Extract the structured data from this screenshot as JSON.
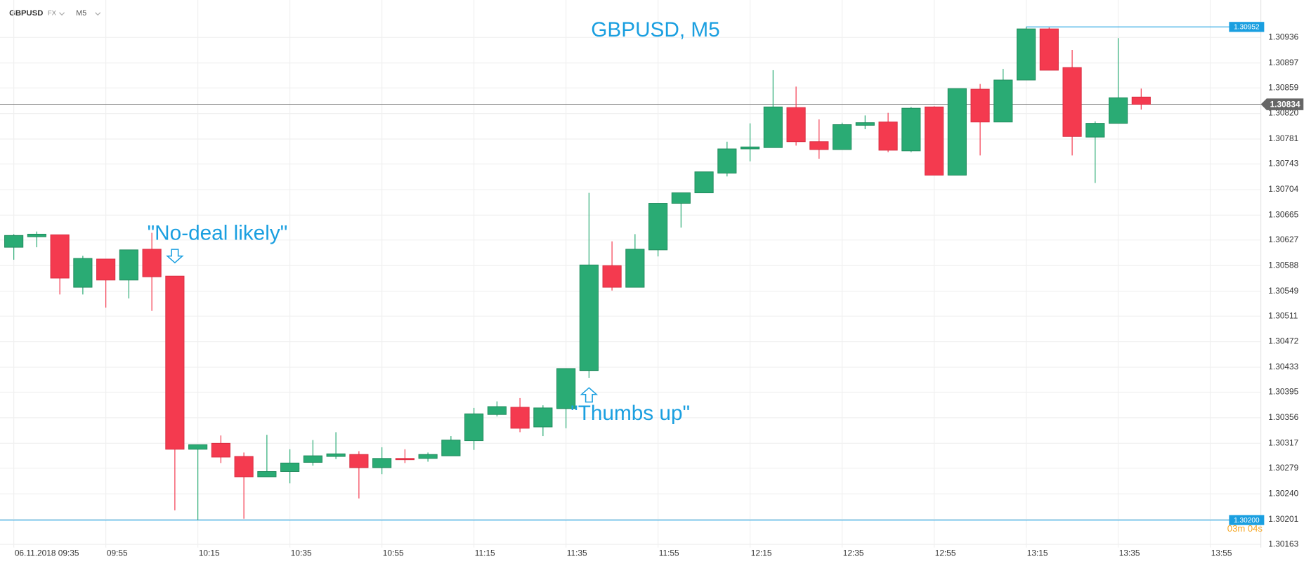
{
  "toolbar": {
    "symbol": "GBPUSD",
    "market": "FX",
    "timeframe": "M5"
  },
  "chart_data": {
    "type": "candlestick",
    "title": "GBPUSD, M5",
    "x": [
      "09:35",
      "09:40",
      "09:45",
      "09:50",
      "09:55",
      "10:00",
      "10:05",
      "10:10",
      "10:15",
      "10:20",
      "10:25",
      "10:30",
      "10:35",
      "10:40",
      "10:45",
      "10:50",
      "10:55",
      "11:00",
      "11:05",
      "11:10",
      "11:15",
      "11:20",
      "11:25",
      "11:30",
      "11:35",
      "11:40",
      "11:45",
      "11:50",
      "11:55",
      "12:00",
      "12:05",
      "12:10",
      "12:15",
      "12:20",
      "12:25",
      "12:30",
      "12:35",
      "12:40",
      "12:45",
      "12:50",
      "12:55",
      "13:00",
      "13:05",
      "13:10",
      "13:15",
      "13:20",
      "13:25",
      "13:30",
      "13:35",
      "13:40"
    ],
    "open": [
      1.30616,
      1.30632,
      1.30635,
      1.30555,
      1.30598,
      1.30566,
      1.30613,
      1.30572,
      1.30308,
      1.30317,
      1.30297,
      1.30266,
      1.30274,
      1.30288,
      1.30297,
      1.303,
      1.3028,
      1.30294,
      1.30294,
      1.30298,
      1.30321,
      1.30361,
      1.30372,
      1.30342,
      1.3037,
      1.30428,
      1.30588,
      1.30555,
      1.30612,
      1.30683,
      1.30699,
      1.30729,
      1.30766,
      1.30768,
      1.30829,
      1.30777,
      1.30765,
      1.30802,
      1.30807,
      1.30763,
      1.3083,
      1.30726,
      1.30857,
      1.30807,
      1.30871,
      1.30949,
      1.3089,
      1.30784,
      1.30805,
      1.30845
    ],
    "high": [
      1.30636,
      1.3064,
      1.30635,
      1.30603,
      1.30598,
      1.30612,
      1.30638,
      1.30572,
      1.30315,
      1.30329,
      1.30303,
      1.3033,
      1.30308,
      1.30322,
      1.30334,
      1.30305,
      1.30311,
      1.30308,
      1.30303,
      1.30328,
      1.30371,
      1.30381,
      1.30386,
      1.30375,
      1.30431,
      1.30699,
      1.30625,
      1.30636,
      1.30683,
      1.30699,
      1.30731,
      1.30777,
      1.30805,
      1.30886,
      1.30861,
      1.30811,
      1.30806,
      1.30817,
      1.30821,
      1.3083,
      1.30831,
      1.30858,
      1.30865,
      1.30888,
      1.30952,
      1.30951,
      1.30917,
      1.30808,
      1.30935,
      1.30858
    ],
    "low": [
      1.30597,
      1.30616,
      1.30544,
      1.30544,
      1.30524,
      1.30538,
      1.30519,
      1.30215,
      1.302,
      1.30287,
      1.30202,
      1.30266,
      1.30256,
      1.30283,
      1.30293,
      1.30233,
      1.3027,
      1.30287,
      1.30289,
      1.30298,
      1.30307,
      1.30358,
      1.30334,
      1.30328,
      1.3034,
      1.30417,
      1.3055,
      1.30555,
      1.30602,
      1.30646,
      1.30699,
      1.30724,
      1.30747,
      1.30768,
      1.30771,
      1.30751,
      1.30765,
      1.30796,
      1.30761,
      1.30761,
      1.30726,
      1.30726,
      1.30756,
      1.30807,
      1.30871,
      1.30886,
      1.30756,
      1.30714,
      1.30805,
      1.30826
    ],
    "close": [
      1.30634,
      1.30636,
      1.30569,
      1.30599,
      1.30566,
      1.30612,
      1.30571,
      1.30308,
      1.30315,
      1.30296,
      1.30266,
      1.30274,
      1.30287,
      1.30298,
      1.30301,
      1.3028,
      1.30294,
      1.30292,
      1.303,
      1.30322,
      1.30362,
      1.30373,
      1.3034,
      1.30371,
      1.30431,
      1.30589,
      1.30555,
      1.30613,
      1.30683,
      1.30699,
      1.30731,
      1.30766,
      1.30769,
      1.3083,
      1.30777,
      1.30765,
      1.30803,
      1.30806,
      1.30764,
      1.30828,
      1.30726,
      1.30858,
      1.30807,
      1.30871,
      1.30949,
      1.30886,
      1.30785,
      1.30805,
      1.30844,
      1.30834
    ],
    "up_color": "#2aab74",
    "down_color": "#f43a4f",
    "xlim": [
      "09:32",
      "14:06"
    ],
    "xticks": [
      {
        "value": "09:35",
        "label": "06.11.2018 09:35"
      },
      "09:55",
      "10:15",
      "10:35",
      "10:55",
      "11:15",
      "11:35",
      "11:55",
      "12:15",
      "12:35",
      "12:55",
      "13:15",
      "13:35",
      "13:55"
    ],
    "ylim": [
      1.30158,
      1.30965
    ],
    "yticks": [
      1.30163,
      1.30201,
      {
        "value": 1.3024,
        "label": "1.30240"
      },
      1.30279,
      1.30317,
      1.30356,
      1.30395,
      1.30433,
      1.30472,
      1.30511,
      1.30549,
      1.30588,
      1.30627,
      1.30665,
      1.30704,
      1.30743,
      1.30781,
      {
        "value": 1.3082,
        "label": "1.30820"
      },
      1.30859,
      1.30897,
      1.30936
    ],
    "grid": true,
    "high_line": 1.30952,
    "low_line": {
      "value": 1.302,
      "label": "1.30200"
    },
    "last_price": 1.30834,
    "countdown": "03m 04s",
    "annotations": [
      {
        "text": "\"No-deal likely\"",
        "x": "10:10",
        "position": "above"
      },
      {
        "text": "\"Thumbs up\"",
        "x": "11:40",
        "position": "below"
      }
    ]
  }
}
